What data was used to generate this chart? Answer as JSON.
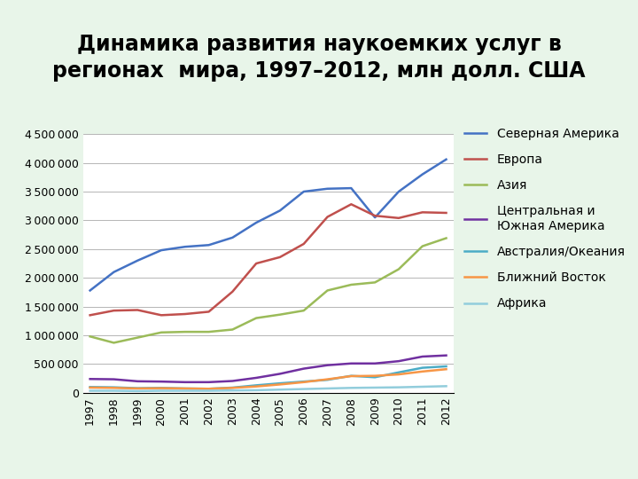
{
  "title_line1": "Динамика развития наукоемких услуг в",
  "title_line2": "регионах  мира, 1997–2012, млн долл. США",
  "years": [
    1997,
    1998,
    1999,
    2000,
    2001,
    2002,
    2003,
    2004,
    2005,
    2006,
    2007,
    2008,
    2009,
    2010,
    2011,
    2012
  ],
  "series": [
    {
      "label": "Северная Америка",
      "color": "#4472C4",
      "values": [
        1780000,
        2100000,
        2300000,
        2480000,
        2540000,
        2570000,
        2700000,
        2960000,
        3170000,
        3500000,
        3550000,
        3560000,
        3050000,
        3500000,
        3800000,
        4060000
      ]
    },
    {
      "label": "Европа",
      "color": "#C0504D",
      "values": [
        1350000,
        1430000,
        1440000,
        1350000,
        1370000,
        1410000,
        1760000,
        2250000,
        2360000,
        2590000,
        3060000,
        3280000,
        3080000,
        3040000,
        3140000,
        3130000
      ]
    },
    {
      "label": "Азия",
      "color": "#9BBB59",
      "values": [
        980000,
        870000,
        960000,
        1050000,
        1060000,
        1060000,
        1100000,
        1300000,
        1360000,
        1430000,
        1780000,
        1880000,
        1920000,
        2150000,
        2550000,
        2690000
      ]
    },
    {
      "label": "Центральная и\nЮжная Америка",
      "color": "#7030A0",
      "values": [
        240000,
        235000,
        200000,
        195000,
        185000,
        185000,
        205000,
        260000,
        330000,
        420000,
        480000,
        510000,
        510000,
        550000,
        630000,
        650000
      ]
    },
    {
      "label": "Австралия/Океания",
      "color": "#4BACC6",
      "values": [
        100000,
        95000,
        80000,
        85000,
        75000,
        70000,
        90000,
        130000,
        165000,
        195000,
        225000,
        295000,
        270000,
        355000,
        435000,
        460000
      ]
    },
    {
      "label": "Ближний Восток",
      "color": "#F79646",
      "values": [
        90000,
        85000,
        75000,
        80000,
        75000,
        70000,
        85000,
        110000,
        145000,
        185000,
        235000,
        290000,
        295000,
        320000,
        370000,
        410000
      ]
    },
    {
      "label": "Африка",
      "color": "#92CDDC",
      "values": [
        35000,
        35000,
        30000,
        35000,
        35000,
        35000,
        40000,
        45000,
        55000,
        65000,
        75000,
        85000,
        90000,
        95000,
        105000,
        115000
      ]
    }
  ],
  "ylim": [
    0,
    4500000
  ],
  "yticks": [
    0,
    500000,
    1000000,
    1500000,
    2000000,
    2500000,
    3000000,
    3500000,
    4000000,
    4500000
  ],
  "background_color": "#E8F5E9",
  "plot_bg_color": "#FFFFFF",
  "title_fontsize": 17,
  "tick_fontsize": 9,
  "legend_fontsize": 10
}
